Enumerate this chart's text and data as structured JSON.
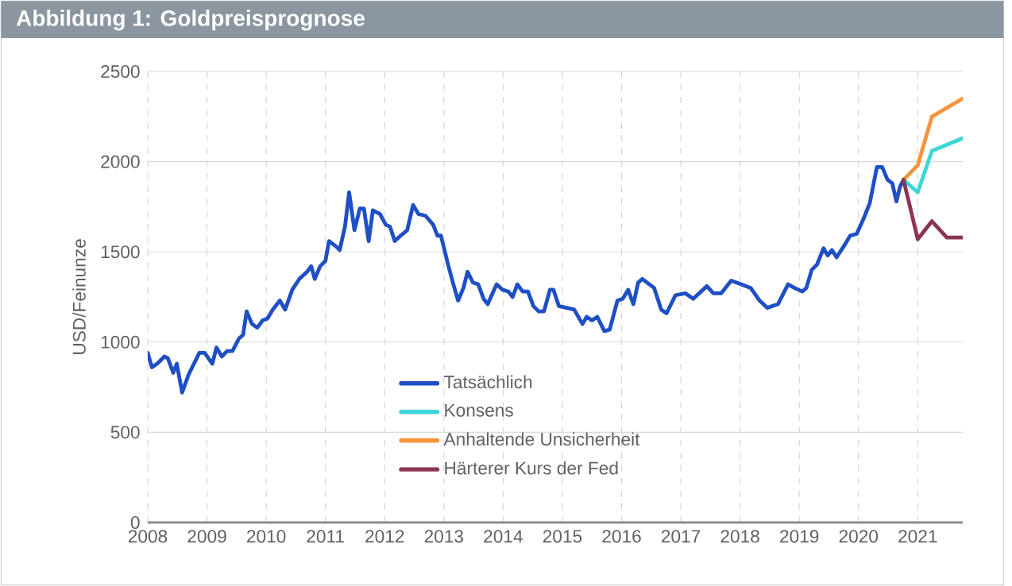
{
  "chart_data": {
    "type": "line",
    "title": "Abbildung 1: Goldpreisprognose",
    "ylabel": "USD/Feinunze",
    "xlim": [
      2008,
      2021.76
    ],
    "xticks": [
      2008,
      2009,
      2010,
      2011,
      2012,
      2013,
      2014,
      2015,
      2016,
      2017,
      2018,
      2019,
      2020,
      2021
    ],
    "ylim": [
      0,
      2500
    ],
    "yticks": [
      0,
      500,
      1000,
      1500,
      2000,
      2500
    ],
    "grid": true,
    "legend": "bottom",
    "series": [
      {
        "name": "Tatsächlich",
        "color": "#1f4fc4",
        "x": [
          2008.0,
          2008.07,
          2008.16,
          2008.28,
          2008.34,
          2008.43,
          2008.49,
          2008.58,
          2008.69,
          2008.87,
          2008.96,
          2009.09,
          2009.16,
          2009.25,
          2009.34,
          2009.43,
          2009.54,
          2009.61,
          2009.67,
          2009.76,
          2009.85,
          2009.94,
          2010.02,
          2010.11,
          2010.23,
          2010.32,
          2010.44,
          2010.56,
          2010.69,
          2010.76,
          2010.82,
          2010.91,
          2011.0,
          2011.06,
          2011.18,
          2011.24,
          2011.33,
          2011.4,
          2011.49,
          2011.58,
          2011.65,
          2011.73,
          2011.8,
          2011.92,
          2012.02,
          2012.09,
          2012.17,
          2012.27,
          2012.38,
          2012.48,
          2012.57,
          2012.69,
          2012.82,
          2012.89,
          2012.95,
          2013.07,
          2013.16,
          2013.24,
          2013.33,
          2013.4,
          2013.49,
          2013.58,
          2013.67,
          2013.74,
          2013.89,
          2013.99,
          2014.09,
          2014.16,
          2014.24,
          2014.33,
          2014.42,
          2014.51,
          2014.6,
          2014.69,
          2014.79,
          2014.85,
          2014.94,
          2015.07,
          2015.2,
          2015.34,
          2015.41,
          2015.5,
          2015.59,
          2015.71,
          2015.8,
          2015.93,
          2016.02,
          2016.11,
          2016.2,
          2016.28,
          2016.35,
          2016.47,
          2016.55,
          2016.67,
          2016.76,
          2016.91,
          2017.08,
          2017.21,
          2017.44,
          2017.55,
          2017.68,
          2017.85,
          2018.02,
          2018.18,
          2018.33,
          2018.46,
          2018.64,
          2018.81,
          2018.92,
          2019.05,
          2019.12,
          2019.21,
          2019.3,
          2019.41,
          2019.48,
          2019.55,
          2019.63,
          2019.75,
          2019.86,
          2019.97,
          2020.08,
          2020.19,
          2020.31,
          2020.4,
          2020.49,
          2020.57,
          2020.64,
          2020.7,
          2020.76
        ],
        "values": [
          940,
          860,
          880,
          920,
          910,
          830,
          880,
          720,
          820,
          940,
          940,
          880,
          970,
          920,
          950,
          950,
          1020,
          1040,
          1170,
          1100,
          1080,
          1120,
          1130,
          1180,
          1230,
          1180,
          1290,
          1350,
          1390,
          1420,
          1350,
          1420,
          1450,
          1560,
          1530,
          1510,
          1640,
          1830,
          1620,
          1740,
          1740,
          1560,
          1730,
          1710,
          1650,
          1640,
          1560,
          1590,
          1620,
          1760,
          1710,
          1700,
          1650,
          1590,
          1590,
          1430,
          1320,
          1230,
          1300,
          1390,
          1330,
          1320,
          1240,
          1210,
          1320,
          1290,
          1280,
          1250,
          1320,
          1280,
          1280,
          1200,
          1170,
          1170,
          1290,
          1290,
          1200,
          1190,
          1180,
          1100,
          1140,
          1120,
          1140,
          1060,
          1070,
          1230,
          1240,
          1290,
          1210,
          1330,
          1350,
          1320,
          1300,
          1180,
          1160,
          1260,
          1270,
          1240,
          1310,
          1270,
          1270,
          1340,
          1320,
          1300,
          1230,
          1190,
          1210,
          1320,
          1300,
          1280,
          1300,
          1400,
          1430,
          1520,
          1480,
          1510,
          1470,
          1530,
          1590,
          1600,
          1680,
          1770,
          1970,
          1970,
          1900,
          1880,
          1780,
          1860,
          1900
        ]
      },
      {
        "name": "Konsens",
        "color": "#3dd6d6",
        "x": [
          2020.76,
          2021.0,
          2021.24,
          2021.76
        ],
        "values": [
          1900,
          1830,
          2060,
          2130
        ]
      },
      {
        "name": "Anhaltende Unsicherheit",
        "color": "#f7943b",
        "x": [
          2020.76,
          2021.0,
          2021.24,
          2021.76
        ],
        "values": [
          1900,
          1980,
          2250,
          2350
        ]
      },
      {
        "name": "Härterer Kurs der Fed",
        "color": "#8b3550",
        "x": [
          2020.76,
          2021.0,
          2021.24,
          2021.49,
          2021.76
        ],
        "values": [
          1900,
          1570,
          1670,
          1580,
          1580
        ]
      }
    ]
  }
}
